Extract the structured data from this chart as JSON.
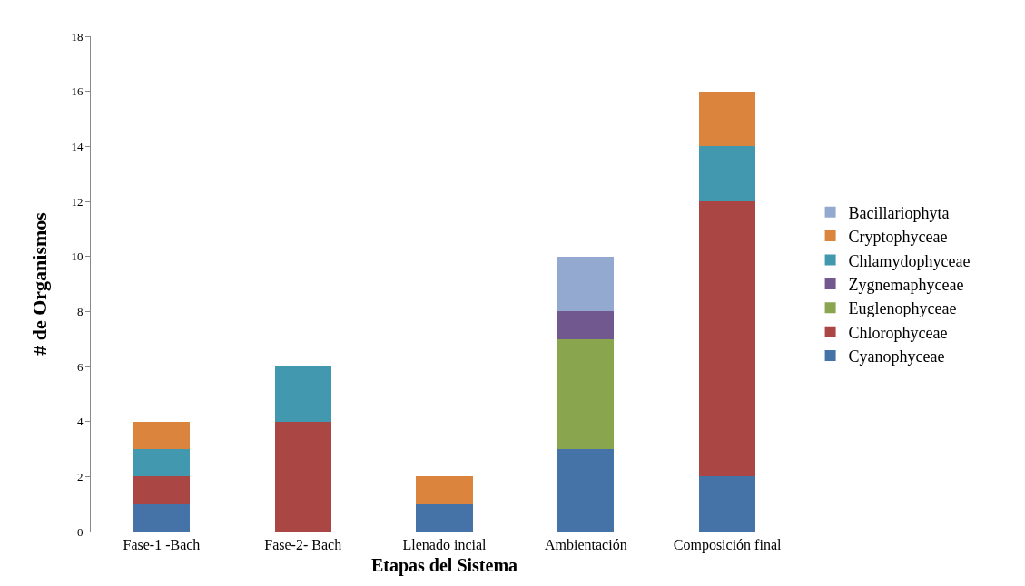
{
  "chart_data": {
    "type": "bar",
    "stacked": true,
    "xlabel": "Etapas del Sistema",
    "ylabel": "# de Organismos",
    "categories": [
      "Fase-1 -Bach",
      "Fase-2- Bach",
      "Llenado incial",
      "Ambientación",
      "Composición final"
    ],
    "series": [
      {
        "name": "Cyanophyceae",
        "color": "#4572a7",
        "values": [
          1,
          null,
          1,
          3,
          2
        ]
      },
      {
        "name": "Chlorophyceae",
        "color": "#aa4643",
        "values": [
          1,
          4,
          null,
          null,
          10
        ]
      },
      {
        "name": "Euglenophyceae",
        "color": "#89a54e",
        "values": [
          null,
          null,
          null,
          4,
          null
        ]
      },
      {
        "name": "Zygnemaphyceae",
        "color": "#71588f",
        "values": [
          null,
          null,
          null,
          1,
          null
        ]
      },
      {
        "name": "Chlamydophyceae",
        "color": "#4198af",
        "values": [
          1,
          2,
          null,
          null,
          2
        ]
      },
      {
        "name": "Cryptophyceae",
        "color": "#db843d",
        "values": [
          1,
          null,
          1,
          null,
          2
        ]
      },
      {
        "name": "Bacillariophyta",
        "color": "#93a9cf",
        "values": [
          null,
          null,
          null,
          2,
          null
        ]
      }
    ],
    "ylim": [
      0,
      18
    ],
    "yticks": [
      0,
      2,
      4,
      6,
      8,
      10,
      12,
      14,
      16,
      18
    ],
    "grid": false,
    "legend": "right"
  }
}
